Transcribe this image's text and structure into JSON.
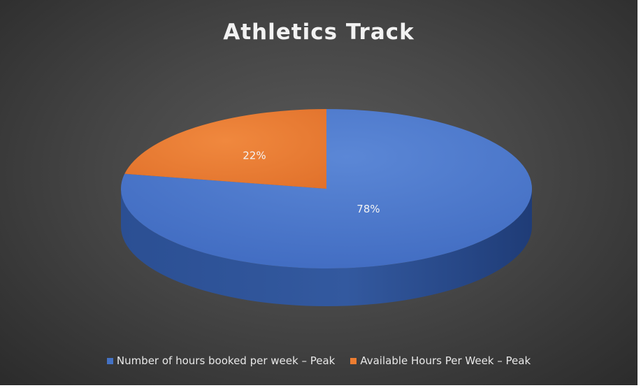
{
  "chart_data": {
    "type": "pie",
    "title": "Athletics Track",
    "slices": [
      {
        "name": "Number of hours booked per week – Peak",
        "value": 78,
        "label": "78%",
        "color": "#4472C4"
      },
      {
        "name": "Available Hours Per Week – Peak",
        "value": 22,
        "label": "22%",
        "color": "#ED7D31"
      }
    ],
    "legend_position": "bottom",
    "style": "3d-pie"
  }
}
